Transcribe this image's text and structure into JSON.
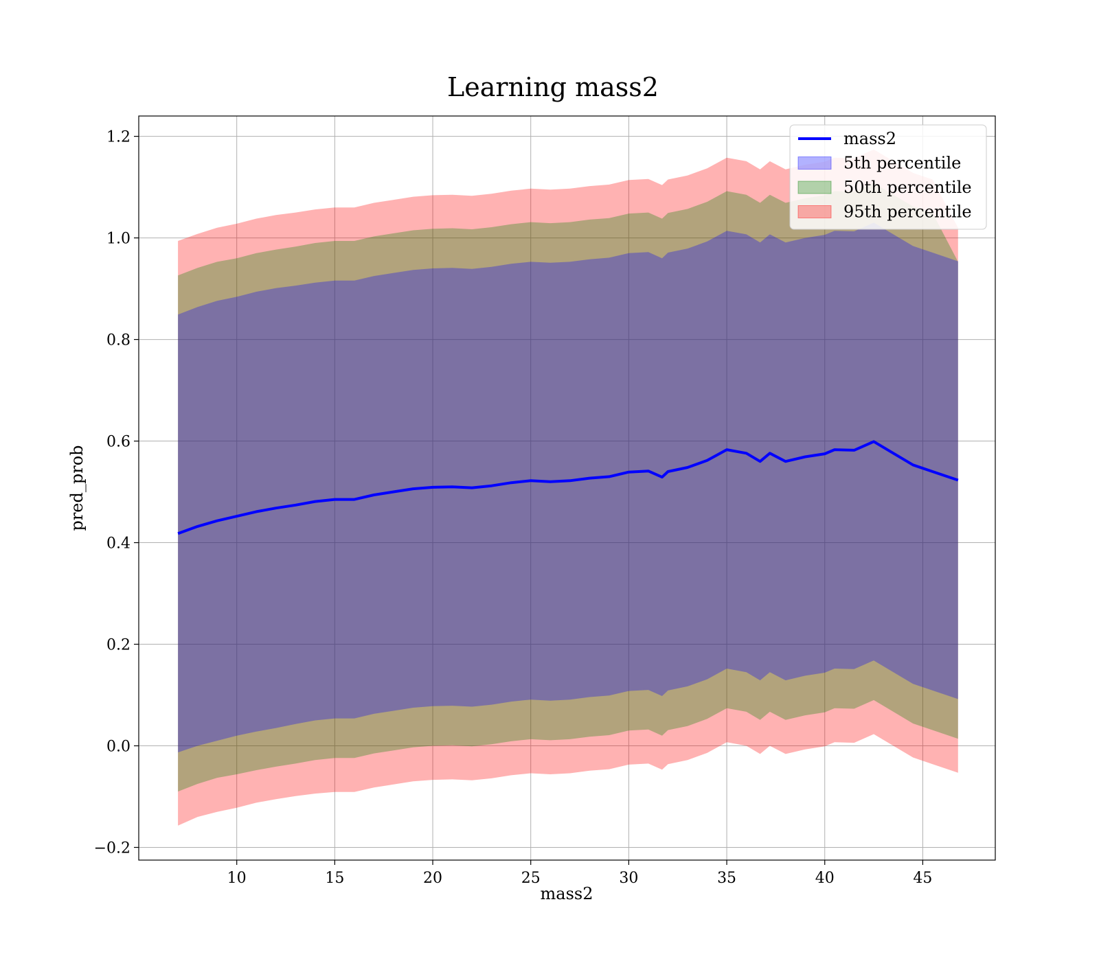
{
  "chart_data": {
    "type": "line",
    "title": "Learning mass2",
    "xlabel": "mass2",
    "ylabel": "pred_prob",
    "xlim": [
      5.0,
      48.7
    ],
    "ylim": [
      -0.225,
      1.24
    ],
    "xticks": [
      10,
      15,
      20,
      25,
      30,
      35,
      40,
      45
    ],
    "yticks": [
      -0.2,
      0.0,
      0.2,
      0.4,
      0.6,
      0.8,
      1.0,
      1.2
    ],
    "ytick_labels": [
      "−0.2",
      "0.0",
      "0.2",
      "0.4",
      "0.6",
      "0.8",
      "1.0",
      "1.2"
    ],
    "grid": true,
    "legend_position": "top-right",
    "x": [
      7.0,
      8.0,
      9.0,
      10.0,
      11.0,
      12.0,
      13.0,
      14.0,
      15.0,
      16.0,
      17.0,
      18.0,
      19.0,
      20.0,
      21.0,
      22.0,
      23.0,
      24.0,
      25.0,
      26.0,
      27.0,
      28.0,
      29.0,
      30.0,
      31.0,
      31.7,
      32.0,
      33.0,
      34.0,
      35.0,
      36.0,
      36.7,
      37.2,
      38.0,
      39.0,
      40.0,
      40.5,
      41.5,
      42.5,
      43.5,
      44.5,
      45.5,
      46.8
    ],
    "series": [
      {
        "name": "mass2",
        "kind": "line",
        "color": "#0000ff",
        "values": [
          0.418,
          0.432,
          0.443,
          0.452,
          0.461,
          0.468,
          0.474,
          0.481,
          0.485,
          0.485,
          0.494,
          0.5,
          0.506,
          0.509,
          0.51,
          0.508,
          0.512,
          0.518,
          0.522,
          0.52,
          0.522,
          0.527,
          0.53,
          0.539,
          0.541,
          0.529,
          0.54,
          0.548,
          0.562,
          0.583,
          0.576,
          0.56,
          0.576,
          0.56,
          0.569,
          0.575,
          0.583,
          0.582,
          0.599,
          0.576,
          0.553,
          0.54,
          0.523
        ]
      },
      {
        "name": "5th percentile",
        "kind": "band",
        "color": "#0000ff",
        "lower": [
          -0.013,
          0.0,
          0.01,
          0.02,
          0.028,
          0.035,
          0.043,
          0.05,
          0.054,
          0.054,
          0.063,
          0.069,
          0.075,
          0.078,
          0.079,
          0.077,
          0.081,
          0.087,
          0.091,
          0.089,
          0.091,
          0.096,
          0.099,
          0.108,
          0.11,
          0.098,
          0.109,
          0.117,
          0.131,
          0.152,
          0.145,
          0.129,
          0.145,
          0.129,
          0.138,
          0.144,
          0.152,
          0.151,
          0.168,
          0.145,
          0.122,
          0.109,
          0.092
        ],
        "upper": [
          0.849,
          0.864,
          0.876,
          0.884,
          0.894,
          0.901,
          0.906,
          0.912,
          0.916,
          0.916,
          0.925,
          0.931,
          0.937,
          0.94,
          0.941,
          0.939,
          0.943,
          0.949,
          0.953,
          0.951,
          0.953,
          0.958,
          0.961,
          0.97,
          0.972,
          0.96,
          0.971,
          0.979,
          0.993,
          1.014,
          1.007,
          0.991,
          1.007,
          0.991,
          1.0,
          1.006,
          1.014,
          1.013,
          1.03,
          1.007,
          0.984,
          0.971,
          0.954
        ]
      },
      {
        "name": "50th percentile",
        "kind": "band",
        "color": "#008000",
        "lower": [
          -0.09,
          -0.075,
          -0.063,
          -0.056,
          -0.048,
          -0.041,
          -0.035,
          -0.028,
          -0.024,
          -0.024,
          -0.015,
          -0.009,
          -0.003,
          0.0,
          0.001,
          -0.001,
          0.003,
          0.009,
          0.013,
          0.011,
          0.013,
          0.018,
          0.021,
          0.03,
          0.032,
          0.02,
          0.031,
          0.039,
          0.053,
          0.074,
          0.067,
          0.051,
          0.067,
          0.051,
          0.06,
          0.066,
          0.074,
          0.073,
          0.09,
          0.067,
          0.044,
          0.031,
          0.014
        ],
        "upper": [
          0.926,
          0.941,
          0.953,
          0.96,
          0.97,
          0.977,
          0.983,
          0.99,
          0.994,
          0.994,
          1.003,
          1.009,
          1.015,
          1.018,
          1.019,
          1.017,
          1.021,
          1.027,
          1.031,
          1.029,
          1.031,
          1.036,
          1.039,
          1.048,
          1.05,
          1.038,
          1.049,
          1.057,
          1.071,
          1.092,
          1.085,
          1.069,
          1.085,
          1.069,
          1.078,
          1.084,
          1.092,
          1.091,
          1.108,
          1.085,
          1.062,
          1.049,
          0.953
        ]
      },
      {
        "name": "95th percentile",
        "kind": "band",
        "color": "#ff0000",
        "lower": [
          -0.157,
          -0.14,
          -0.13,
          -0.122,
          -0.112,
          -0.105,
          -0.099,
          -0.094,
          -0.091,
          -0.091,
          -0.082,
          -0.076,
          -0.07,
          -0.067,
          -0.066,
          -0.068,
          -0.064,
          -0.058,
          -0.054,
          -0.056,
          -0.054,
          -0.049,
          -0.046,
          -0.037,
          -0.035,
          -0.047,
          -0.036,
          -0.028,
          -0.014,
          0.007,
          0.0,
          -0.016,
          0.0,
          -0.016,
          -0.007,
          -0.001,
          0.007,
          0.006,
          0.023,
          0.0,
          -0.023,
          -0.036,
          -0.053
        ],
        "upper": [
          0.994,
          1.008,
          1.02,
          1.028,
          1.038,
          1.045,
          1.05,
          1.056,
          1.06,
          1.06,
          1.069,
          1.075,
          1.081,
          1.084,
          1.085,
          1.083,
          1.087,
          1.093,
          1.097,
          1.095,
          1.097,
          1.102,
          1.105,
          1.114,
          1.116,
          1.104,
          1.115,
          1.123,
          1.137,
          1.158,
          1.151,
          1.135,
          1.151,
          1.135,
          1.144,
          1.15,
          1.158,
          1.157,
          1.174,
          1.151,
          1.128,
          1.115,
          1.02
        ]
      }
    ]
  }
}
